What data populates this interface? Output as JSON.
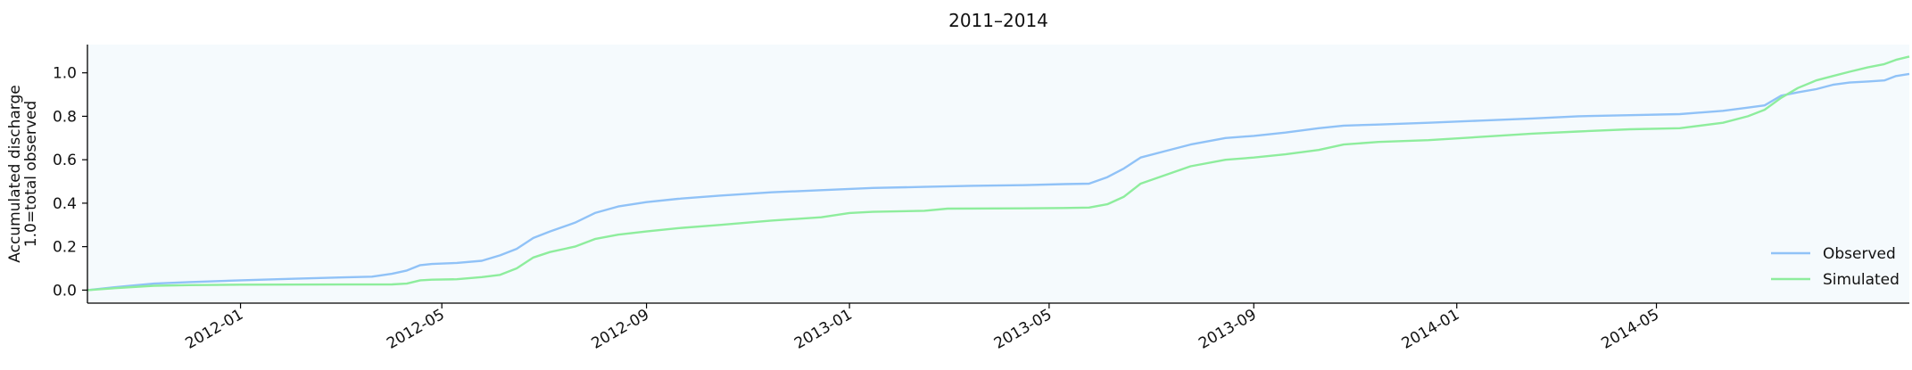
{
  "chart_data": {
    "type": "line",
    "title": "2011–2014",
    "xlabel": "",
    "ylabel_lines": [
      "Accumulated discharge",
      "1.0=total observed"
    ],
    "xlim": [
      "2011-10-01",
      "2014-09-30"
    ],
    "ylim": [
      -0.06,
      1.13
    ],
    "yticks": [
      0.0,
      0.2,
      0.4,
      0.6,
      0.8,
      1.0
    ],
    "ytick_labels": [
      "0.0",
      "0.2",
      "0.4",
      "0.6",
      "0.8",
      "1.0"
    ],
    "xticks": [
      "2012-01-01",
      "2012-05-01",
      "2012-09-01",
      "2013-01-01",
      "2013-05-01",
      "2013-09-01",
      "2014-01-01",
      "2014-05-01"
    ],
    "xtick_labels": [
      "2012-01",
      "2012-05",
      "2012-09",
      "2013-01",
      "2013-05",
      "2013-09",
      "2014-01",
      "2014-05"
    ],
    "grid": false,
    "legend_position": "lower-right",
    "plot_background": "#f5fafd",
    "series": [
      {
        "name": "Observed",
        "color": "#90c2f7",
        "points": [
          [
            "2011-10-01",
            0.0
          ],
          [
            "2011-10-20",
            0.015
          ],
          [
            "2011-11-10",
            0.03
          ],
          [
            "2011-12-01",
            0.037
          ],
          [
            "2012-01-01",
            0.045
          ],
          [
            "2012-02-01",
            0.052
          ],
          [
            "2012-03-01",
            0.058
          ],
          [
            "2012-03-20",
            0.062
          ],
          [
            "2012-04-01",
            0.075
          ],
          [
            "2012-04-10",
            0.09
          ],
          [
            "2012-04-18",
            0.115
          ],
          [
            "2012-04-25",
            0.12
          ],
          [
            "2012-05-10",
            0.125
          ],
          [
            "2012-05-25",
            0.135
          ],
          [
            "2012-06-05",
            0.16
          ],
          [
            "2012-06-15",
            0.19
          ],
          [
            "2012-06-25",
            0.24
          ],
          [
            "2012-07-05",
            0.27
          ],
          [
            "2012-07-20",
            0.31
          ],
          [
            "2012-08-01",
            0.355
          ],
          [
            "2012-08-15",
            0.385
          ],
          [
            "2012-09-01",
            0.405
          ],
          [
            "2012-09-20",
            0.42
          ],
          [
            "2012-10-15",
            0.435
          ],
          [
            "2012-11-15",
            0.45
          ],
          [
            "2012-12-15",
            0.46
          ],
          [
            "2013-01-15",
            0.47
          ],
          [
            "2013-02-15",
            0.475
          ],
          [
            "2013-03-15",
            0.48
          ],
          [
            "2013-04-15",
            0.483
          ],
          [
            "2013-05-10",
            0.488
          ],
          [
            "2013-05-25",
            0.49
          ],
          [
            "2013-06-05",
            0.52
          ],
          [
            "2013-06-15",
            0.56
          ],
          [
            "2013-06-25",
            0.61
          ],
          [
            "2013-07-10",
            0.64
          ],
          [
            "2013-07-25",
            0.67
          ],
          [
            "2013-08-15",
            0.7
          ],
          [
            "2013-09-01",
            0.71
          ],
          [
            "2013-09-20",
            0.725
          ],
          [
            "2013-10-10",
            0.745
          ],
          [
            "2013-10-25",
            0.757
          ],
          [
            "2013-11-15",
            0.762
          ],
          [
            "2013-12-15",
            0.77
          ],
          [
            "2014-01-15",
            0.78
          ],
          [
            "2014-02-15",
            0.79
          ],
          [
            "2014-03-15",
            0.8
          ],
          [
            "2014-04-15",
            0.805
          ],
          [
            "2014-05-15",
            0.81
          ],
          [
            "2014-06-10",
            0.825
          ],
          [
            "2014-06-25",
            0.84
          ],
          [
            "2014-07-05",
            0.85
          ],
          [
            "2014-07-15",
            0.895
          ],
          [
            "2014-07-25",
            0.91
          ],
          [
            "2014-08-05",
            0.925
          ],
          [
            "2014-08-15",
            0.945
          ],
          [
            "2014-08-25",
            0.955
          ],
          [
            "2014-09-05",
            0.96
          ],
          [
            "2014-09-15",
            0.965
          ],
          [
            "2014-09-22",
            0.985
          ],
          [
            "2014-09-30",
            0.995
          ]
        ]
      },
      {
        "name": "Simulated",
        "color": "#8eed9d",
        "points": [
          [
            "2011-10-01",
            0.0
          ],
          [
            "2011-10-20",
            0.01
          ],
          [
            "2011-11-10",
            0.02
          ],
          [
            "2011-12-01",
            0.023
          ],
          [
            "2012-01-01",
            0.025
          ],
          [
            "2012-04-01",
            0.026
          ],
          [
            "2012-04-10",
            0.03
          ],
          [
            "2012-04-18",
            0.045
          ],
          [
            "2012-04-25",
            0.048
          ],
          [
            "2012-05-10",
            0.05
          ],
          [
            "2012-05-25",
            0.06
          ],
          [
            "2012-06-05",
            0.07
          ],
          [
            "2012-06-15",
            0.1
          ],
          [
            "2012-06-25",
            0.15
          ],
          [
            "2012-07-05",
            0.175
          ],
          [
            "2012-07-20",
            0.2
          ],
          [
            "2012-08-01",
            0.235
          ],
          [
            "2012-08-15",
            0.255
          ],
          [
            "2012-09-01",
            0.27
          ],
          [
            "2012-09-20",
            0.285
          ],
          [
            "2012-10-15",
            0.3
          ],
          [
            "2012-11-15",
            0.32
          ],
          [
            "2012-12-15",
            0.335
          ],
          [
            "2013-01-01",
            0.355
          ],
          [
            "2013-01-15",
            0.36
          ],
          [
            "2013-02-15",
            0.365
          ],
          [
            "2013-03-01",
            0.375
          ],
          [
            "2013-04-15",
            0.376
          ],
          [
            "2013-05-10",
            0.378
          ],
          [
            "2013-05-25",
            0.38
          ],
          [
            "2013-06-05",
            0.395
          ],
          [
            "2013-06-15",
            0.43
          ],
          [
            "2013-06-25",
            0.49
          ],
          [
            "2013-07-10",
            0.53
          ],
          [
            "2013-07-25",
            0.57
          ],
          [
            "2013-08-15",
            0.6
          ],
          [
            "2013-09-01",
            0.61
          ],
          [
            "2013-09-20",
            0.625
          ],
          [
            "2013-10-10",
            0.645
          ],
          [
            "2013-10-25",
            0.67
          ],
          [
            "2013-11-15",
            0.682
          ],
          [
            "2013-12-15",
            0.69
          ],
          [
            "2014-01-15",
            0.705
          ],
          [
            "2014-02-15",
            0.72
          ],
          [
            "2014-03-15",
            0.73
          ],
          [
            "2014-04-15",
            0.74
          ],
          [
            "2014-05-15",
            0.745
          ],
          [
            "2014-06-10",
            0.77
          ],
          [
            "2014-06-25",
            0.8
          ],
          [
            "2014-07-05",
            0.83
          ],
          [
            "2014-07-15",
            0.885
          ],
          [
            "2014-07-25",
            0.93
          ],
          [
            "2014-08-05",
            0.965
          ],
          [
            "2014-08-15",
            0.985
          ],
          [
            "2014-08-25",
            1.005
          ],
          [
            "2014-09-05",
            1.025
          ],
          [
            "2014-09-15",
            1.04
          ],
          [
            "2014-09-22",
            1.06
          ],
          [
            "2014-09-30",
            1.075
          ]
        ]
      }
    ]
  }
}
